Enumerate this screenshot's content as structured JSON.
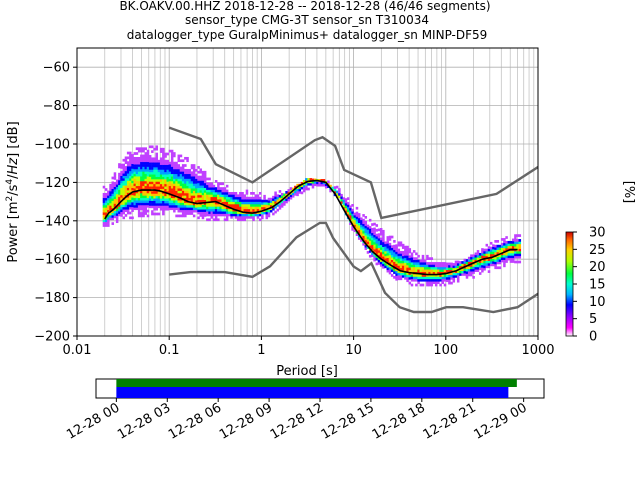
{
  "chart_data": {
    "type": "heatmap",
    "title_lines": [
      "BK.OAKV.00.HHZ   2018-12-28 -- 2018-12-28  (46/46 segments)",
      "sensor_type CMG-3T sensor_sn T310034",
      "datalogger_type GuralpMinimus+ datalogger_sn MINP-DF59"
    ],
    "xlabel": "Period [s]",
    "ylabel": "Power [m²/s⁴/Hz] [dB]",
    "x_scale": "log",
    "xlim": [
      0.01,
      1000
    ],
    "ylim": [
      -200,
      -50
    ],
    "x_ticks": [
      {
        "value": 0.01,
        "label": "0.01"
      },
      {
        "value": 0.1,
        "label": "0.1"
      },
      {
        "value": 1,
        "label": "1"
      },
      {
        "value": 10,
        "label": "10"
      },
      {
        "value": 100,
        "label": "100"
      },
      {
        "value": 1000,
        "label": "1000"
      }
    ],
    "y_ticks": [
      -60,
      -80,
      -100,
      -120,
      -140,
      -160,
      -180,
      -200
    ],
    "grid": true,
    "colorbar": {
      "label": "[%]",
      "range": [
        0,
        30
      ],
      "ticks": [
        0,
        5,
        10,
        15,
        20,
        25,
        30
      ]
    },
    "noise_model_high": {
      "period": [
        0.1,
        0.22,
        0.32,
        0.8,
        3.8,
        4.6,
        6.3,
        7.9,
        15.4,
        20,
        354.8,
        1000
      ],
      "power": [
        -91.5,
        -97.4,
        -110.5,
        -120,
        -98,
        -96.5,
        -101,
        -113.5,
        -120,
        -138.5,
        -126,
        -112
      ]
    },
    "noise_model_low": {
      "period": [
        0.1,
        0.17,
        0.4,
        0.8,
        1.24,
        2.4,
        4.3,
        5,
        6,
        10,
        12,
        15.6,
        21.9,
        31.6,
        45,
        70,
        101,
        154,
        328,
        600,
        1000
      ],
      "power": [
        -168,
        -166.7,
        -166.7,
        -169.2,
        -163.7,
        -148.6,
        -141.1,
        -141.1,
        -149,
        -163.8,
        -166.2,
        -162.1,
        -177.5,
        -185,
        -187.5,
        -187.5,
        -185,
        -185,
        -187.5,
        -185,
        -178
      ]
    },
    "mode_curve": {
      "period": [
        0.02,
        0.022,
        0.025,
        0.03,
        0.035,
        0.04,
        0.05,
        0.06,
        0.07,
        0.08,
        0.1,
        0.13,
        0.16,
        0.2,
        0.25,
        0.32,
        0.4,
        0.5,
        0.63,
        0.8,
        1,
        1.3,
        1.6,
        2,
        2.5,
        3.2,
        4,
        5,
        6.3,
        8,
        10,
        13,
        16,
        20,
        25,
        32,
        40,
        50,
        63,
        80,
        100,
        130,
        160,
        200,
        250,
        320,
        400,
        500,
        600
      ],
      "power": [
        -139,
        -136,
        -134,
        -130,
        -127,
        -125,
        -124,
        -124,
        -124,
        -124.5,
        -126,
        -128,
        -130,
        -131,
        -130.5,
        -130,
        -132,
        -134,
        -135.5,
        -136,
        -135,
        -133,
        -130,
        -126,
        -122,
        -119.5,
        -119,
        -120,
        -126,
        -135,
        -143,
        -151,
        -156,
        -160,
        -163,
        -166,
        -167,
        -167.5,
        -168,
        -168,
        -167.5,
        -166,
        -164,
        -162,
        -160,
        -159,
        -157,
        -155,
        -155
      ]
    },
    "histogram_spread": {
      "period": [
        0.02,
        0.025,
        0.03,
        0.04,
        0.06,
        0.1,
        0.15,
        0.2,
        0.3,
        0.5,
        0.8,
        1.2,
        2,
        3,
        4.5,
        7,
        10,
        15,
        20,
        30,
        50,
        80,
        120,
        200,
        300,
        450,
        650
      ],
      "upper": [
        -123,
        -118,
        -110,
        -103,
        -102,
        -104,
        -108,
        -112,
        -120,
        -124,
        -126,
        -128,
        -124,
        -120,
        -119,
        -124,
        -133,
        -140,
        -146,
        -152,
        -158,
        -162,
        -163,
        -158,
        -153,
        -150,
        -148
      ],
      "lower": [
        -143,
        -141,
        -139,
        -138,
        -137,
        -137,
        -138,
        -138,
        -140,
        -140,
        -140,
        -138,
        -130,
        -124,
        -121,
        -128,
        -146,
        -158,
        -165,
        -171,
        -174,
        -174,
        -172,
        -169,
        -166,
        -163,
        -161
      ]
    },
    "data_availability": {
      "ticks": [
        "12-28 00",
        "12-28 03",
        "12-28 06",
        "12-28 09",
        "12-28 12",
        "12-28 15",
        "12-28 18",
        "12-28 21",
        "12-29 00"
      ],
      "range_hours": [
        -1.2,
        25.2
      ],
      "green_span_hours": [
        0,
        23.6
      ],
      "blue_span_hours": [
        0,
        23.1
      ]
    }
  }
}
